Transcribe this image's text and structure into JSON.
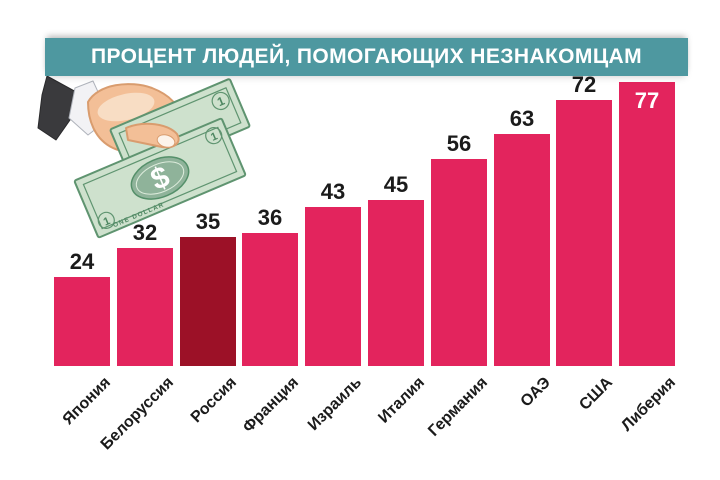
{
  "title": "ПРОЦЕНТ ЛЮДЕЙ, ПОМОГАЮЩИХ НЕЗНАКОМЦАМ",
  "colors": {
    "banner_bg": "#4E98A0",
    "banner_text": "#FFFFFF",
    "bar": "#E3245D",
    "bar_highlight": "#9C1127",
    "value_text": "#1B1B1B",
    "value_text_inside_bar": "#FFFFFF",
    "background": "#FFFFFF",
    "bill_paper_green": "#CEE1CD",
    "bill_print_green": "#5F9470",
    "hand_skin": "#F3BF97",
    "sleeve_dark": "#3A3A3D"
  },
  "illustration": {
    "name": "hand-giving-dollar-bills",
    "bill_symbol": "$",
    "bill_denomination": "1",
    "bill_text": "ONE DOLLAR"
  },
  "chart_data": {
    "type": "bar",
    "title": "ПРОЦЕНТ ЛЮДЕЙ, ПОМОГАЮЩИХ НЕЗНАКОМЦАМ",
    "categories": [
      "Япония",
      "Белоруссия",
      "Россия",
      "Франция",
      "Израиль",
      "Италия",
      "Германия",
      "ОАЭ",
      "США",
      "Либерия"
    ],
    "values": [
      24,
      32,
      35,
      36,
      43,
      45,
      56,
      63,
      72,
      77
    ],
    "unit": "percent",
    "highlighted_category": "Россия",
    "value_label_inside_bar_for": "Либерия",
    "ylim": [
      0,
      80
    ],
    "grid": false,
    "axis_lines": false,
    "legend": false,
    "category_label_rotation_deg": -45
  }
}
